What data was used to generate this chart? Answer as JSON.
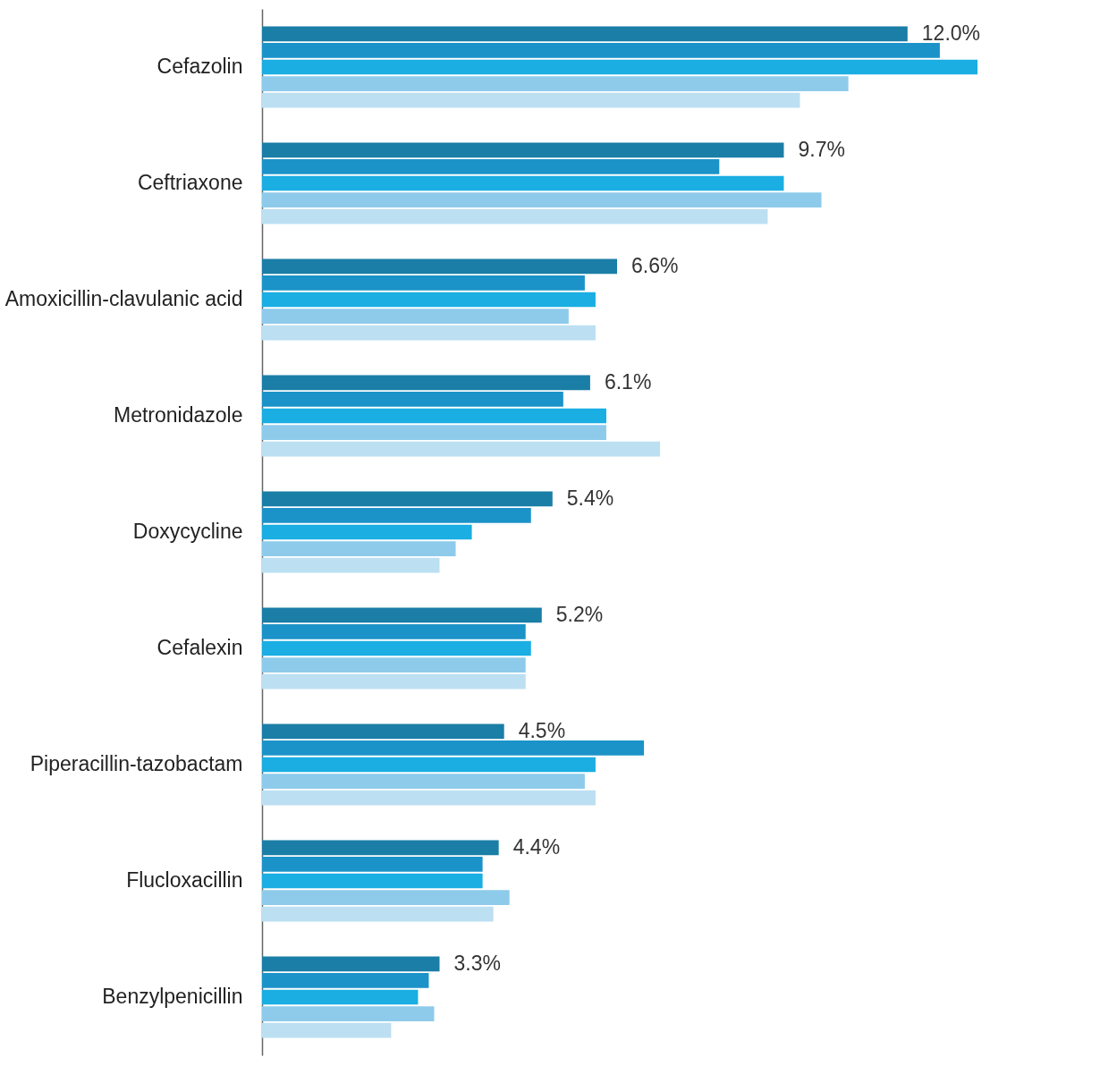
{
  "chart_data": {
    "type": "bar",
    "orientation": "horizontal",
    "tick_labels": "y",
    "grid": false,
    "legend": false,
    "categories": [
      "Cefazolin",
      "Ceftriaxone",
      "Amoxicillin-clavulanic acid",
      "Metronidazole",
      "Doxycycline",
      "Cefalexin",
      "Piperacillin-tazobactam",
      "Flucloxacillin",
      "Benzylpenicillin"
    ],
    "series": [
      {
        "color": "#1a7ea6",
        "values": [
          12.0,
          9.7,
          6.6,
          6.1,
          5.4,
          5.2,
          4.5,
          4.4,
          3.3
        ],
        "value_labels": [
          "12.0%",
          "9.7%",
          "6.6%",
          "6.1%",
          "5.4%",
          "5.2%",
          "4.5%",
          "4.4%",
          "3.3%"
        ]
      },
      {
        "color": "#1b93c8",
        "values": [
          12.6,
          8.5,
          6.0,
          5.6,
          5.0,
          4.9,
          7.1,
          4.1,
          3.1
        ]
      },
      {
        "color": "#1aaee3",
        "values": [
          13.3,
          9.7,
          6.2,
          6.4,
          3.9,
          5.0,
          6.2,
          4.1,
          2.9
        ]
      },
      {
        "color": "#8ecbeb",
        "values": [
          10.9,
          10.4,
          5.7,
          6.4,
          3.6,
          4.9,
          6.0,
          4.6,
          3.2
        ]
      },
      {
        "color": "#bcdff2",
        "values": [
          10.0,
          9.4,
          6.2,
          7.4,
          3.3,
          4.9,
          6.2,
          4.3,
          2.4
        ]
      }
    ]
  }
}
